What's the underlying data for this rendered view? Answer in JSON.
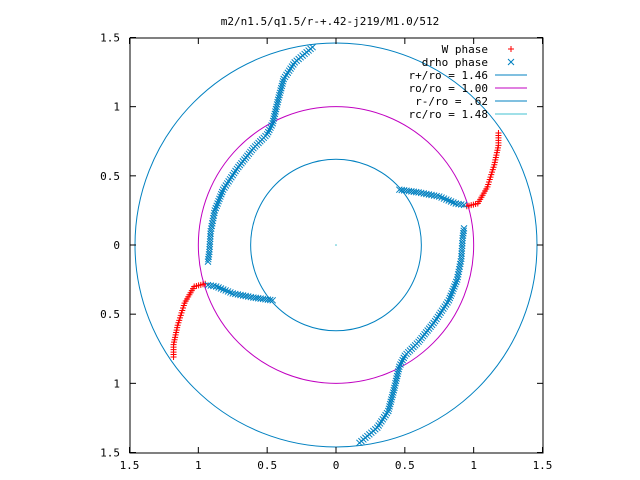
{
  "chart_data": {
    "type": "scatter",
    "title": "m2/n1.5/q1.5/r-+.42-j219/M1.0/512",
    "xlim": [
      -1.5,
      1.5
    ],
    "ylim": [
      -1.5,
      1.5
    ],
    "xticks": [
      {
        "value": -1.5,
        "label": "1.5"
      },
      {
        "value": -1,
        "label": "1"
      },
      {
        "value": -0.5,
        "label": "0.5"
      },
      {
        "value": 0,
        "label": "0"
      },
      {
        "value": 0.5,
        "label": "0.5"
      },
      {
        "value": 1,
        "label": "1"
      },
      {
        "value": 1.5,
        "label": "1.5"
      }
    ],
    "yticks": [
      {
        "value": 1.5,
        "label": "1.5"
      },
      {
        "value": 1,
        "label": "1"
      },
      {
        "value": 0.5,
        "label": "0.5"
      },
      {
        "value": 0,
        "label": "0"
      },
      {
        "value": -0.5,
        "label": "0.5"
      },
      {
        "value": -1,
        "label": "1"
      },
      {
        "value": -1.5,
        "label": "1.5"
      }
    ],
    "legend_position": "top-right",
    "series": [
      {
        "name": "W phase",
        "marker": "plus",
        "color": "#ff0000",
        "arms": [
          [
            [
              0.95,
              0.28
            ],
            [
              1.03,
              0.3
            ],
            [
              1.1,
              0.42
            ],
            [
              1.15,
              0.58
            ],
            [
              1.18,
              0.72
            ],
            [
              1.18,
              0.81
            ]
          ],
          [
            [
              -0.95,
              -0.28
            ],
            [
              -1.03,
              -0.3
            ],
            [
              -1.1,
              -0.42
            ],
            [
              -1.15,
              -0.58
            ],
            [
              -1.18,
              -0.72
            ],
            [
              -1.18,
              -0.81
            ]
          ]
        ]
      },
      {
        "name": "drho phase",
        "marker": "x",
        "color": "#0080c0",
        "arms": [
          [
            [
              0.46,
              0.4
            ],
            [
              0.6,
              0.38
            ],
            [
              0.75,
              0.35
            ],
            [
              0.87,
              0.3
            ],
            [
              0.93,
              0.29
            ]
          ],
          [
            [
              0.93,
              0.12
            ],
            [
              0.92,
              0.05
            ],
            [
              0.91,
              -0.1
            ],
            [
              0.88,
              -0.25
            ],
            [
              0.82,
              -0.4
            ],
            [
              0.72,
              -0.55
            ],
            [
              0.6,
              -0.7
            ],
            [
              0.5,
              -0.8
            ],
            [
              0.46,
              -0.88
            ],
            [
              0.42,
              -1.05
            ],
            [
              0.38,
              -1.2
            ],
            [
              0.3,
              -1.32
            ],
            [
              0.17,
              -1.43
            ]
          ],
          [
            [
              -0.46,
              -0.4
            ],
            [
              -0.6,
              -0.38
            ],
            [
              -0.75,
              -0.35
            ],
            [
              -0.87,
              -0.3
            ],
            [
              -0.93,
              -0.29
            ]
          ],
          [
            [
              -0.93,
              -0.12
            ],
            [
              -0.92,
              -0.05
            ],
            [
              -0.91,
              0.1
            ],
            [
              -0.88,
              0.25
            ],
            [
              -0.82,
              0.4
            ],
            [
              -0.72,
              0.55
            ],
            [
              -0.6,
              0.7
            ],
            [
              -0.5,
              0.8
            ],
            [
              -0.46,
              0.88
            ],
            [
              -0.42,
              1.05
            ],
            [
              -0.38,
              1.2
            ],
            [
              -0.3,
              1.32
            ],
            [
              -0.17,
              1.43
            ]
          ]
        ]
      }
    ],
    "circles": [
      {
        "name": "r+/ro = 1.46",
        "radius": 1.46,
        "color": "#0080c0"
      },
      {
        "name": "ro/ro = 1.00",
        "radius": 1.0,
        "color": "#c000c0"
      },
      {
        "name": "r-/ro = .62",
        "radius": 0.62,
        "color": "#0080c0"
      },
      {
        "name": "rc/ro = 1.48",
        "radius": 1.48,
        "color": "#40c0d0",
        "drawn": false
      }
    ]
  }
}
